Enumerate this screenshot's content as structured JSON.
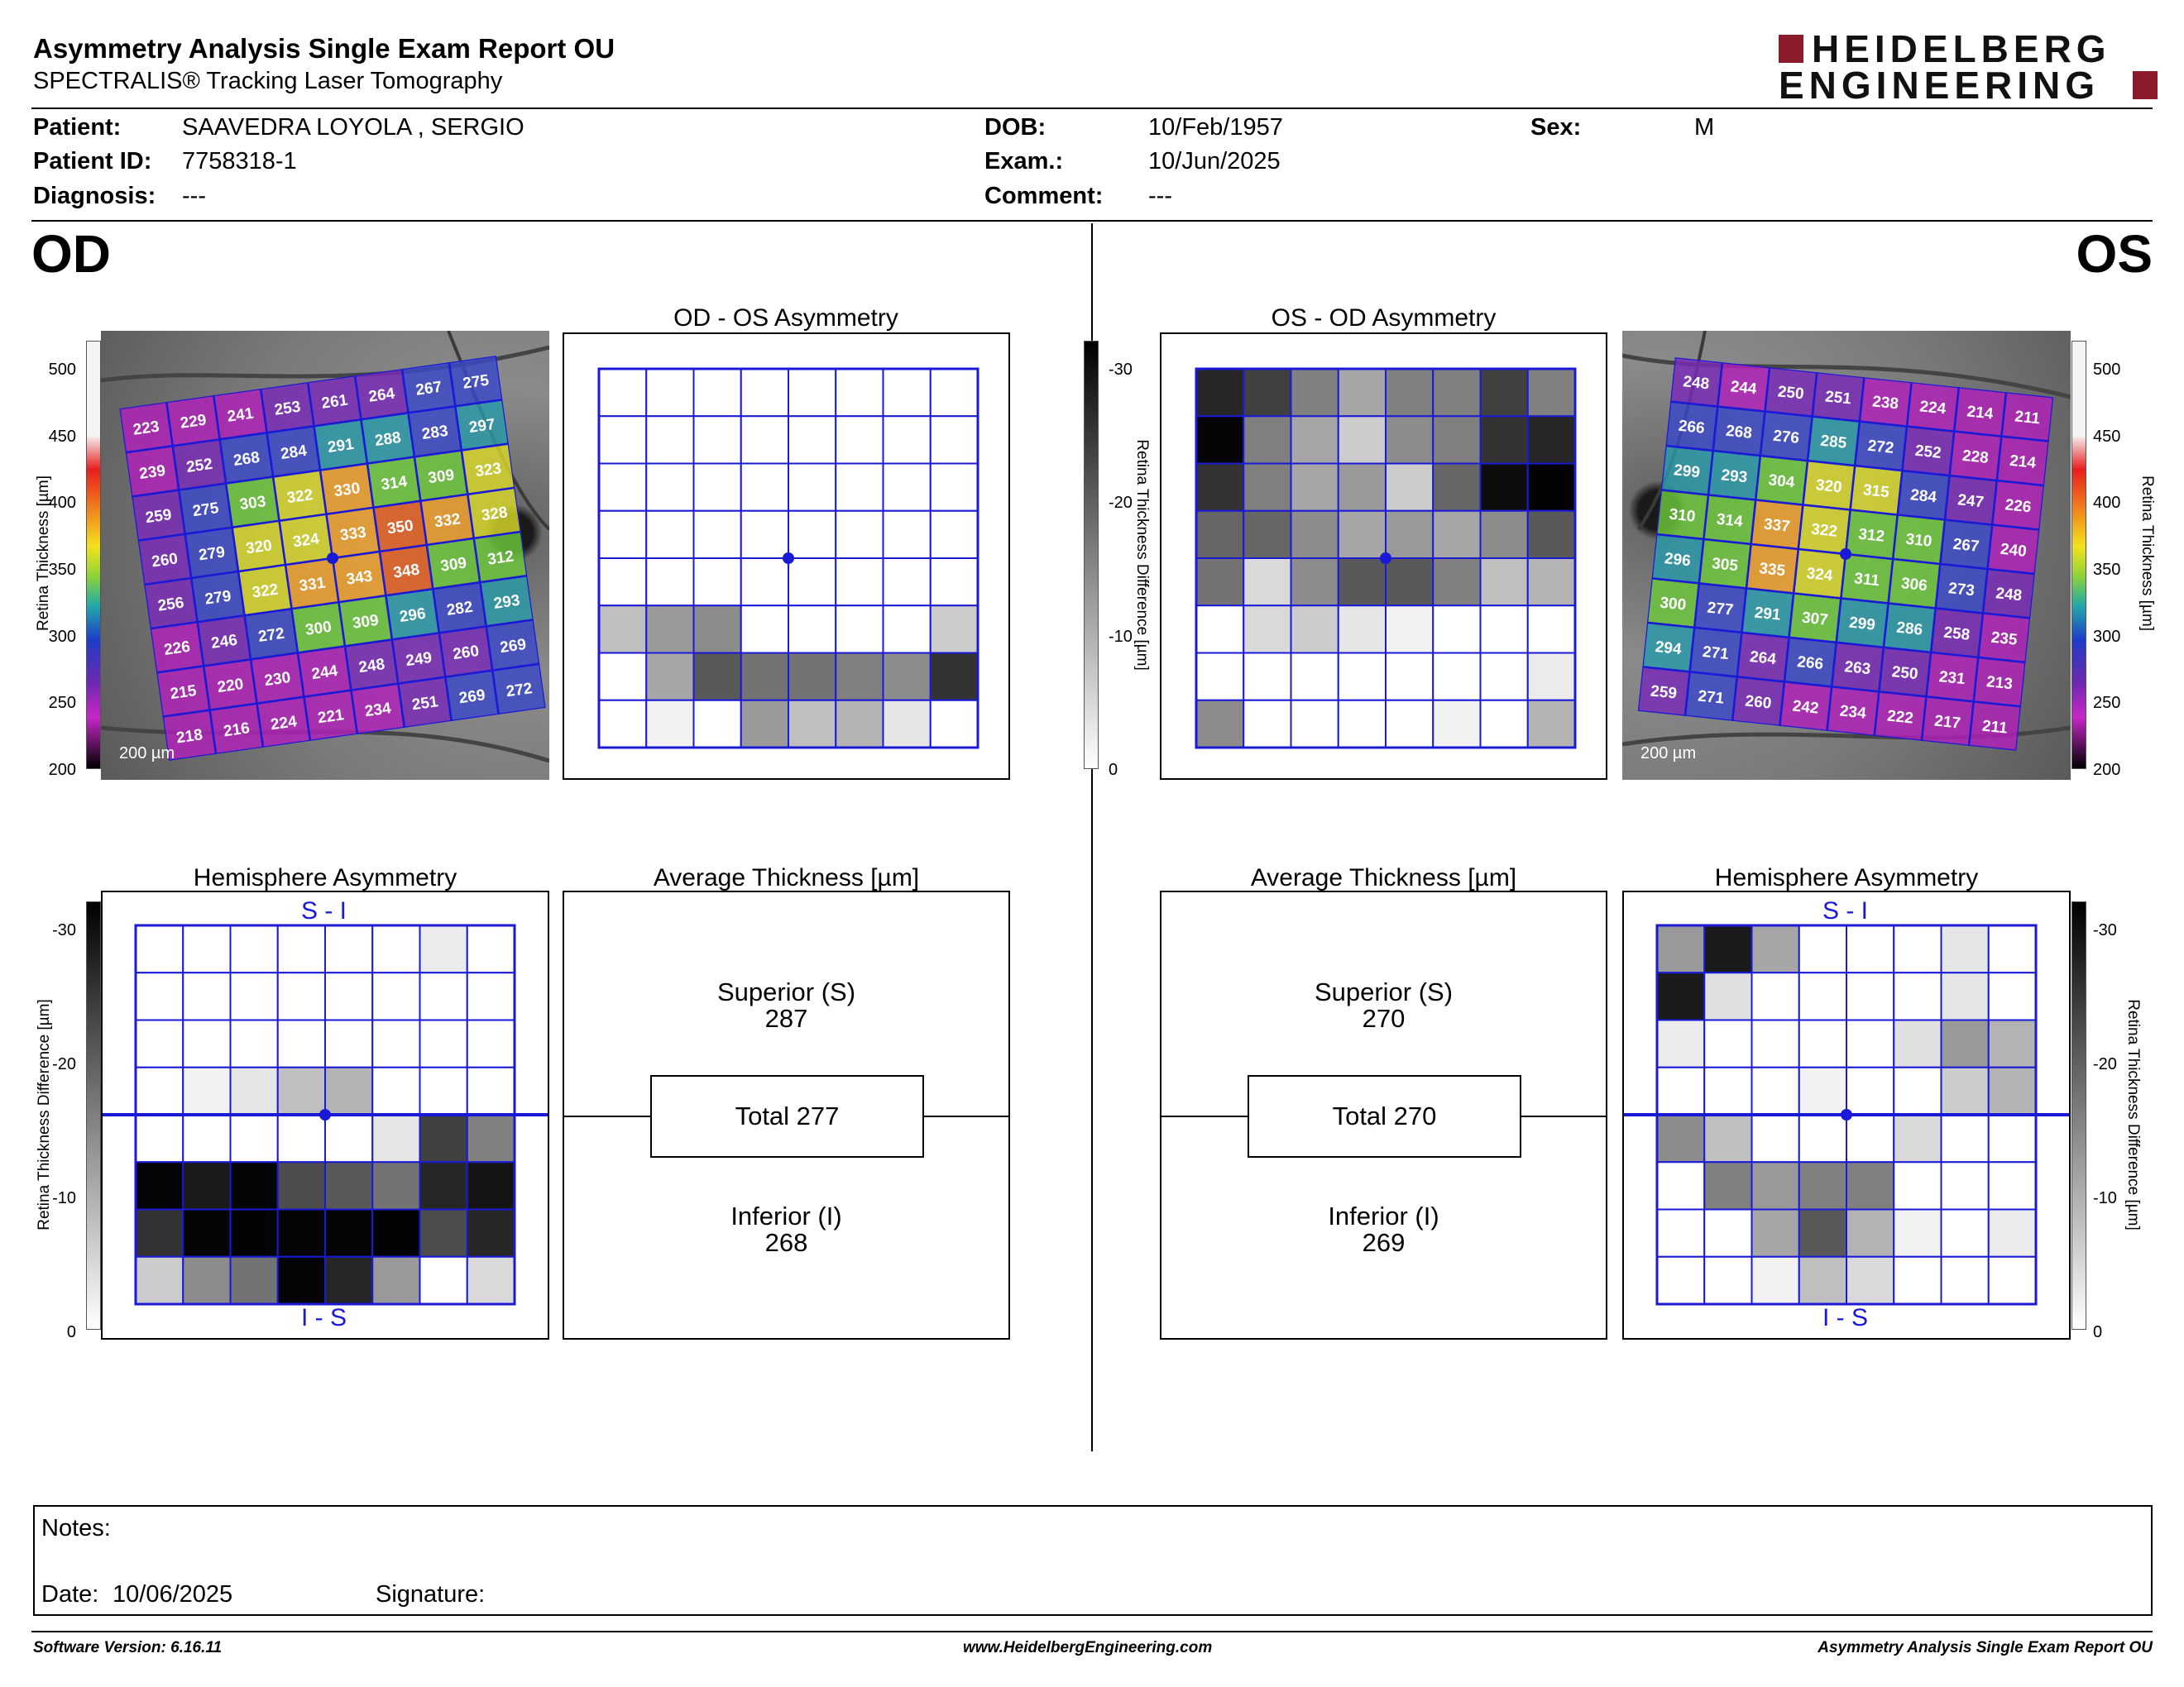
{
  "header": {
    "title": "Asymmetry Analysis Single Exam Report OU",
    "subtitle": "SPECTRALIS® Tracking Laser Tomography",
    "logo_line1": "HEIDELBERG",
    "logo_line2": "ENGINEERING",
    "brand_color": "#8b1a2a"
  },
  "patient": {
    "patient_label": "Patient:",
    "patient_value": "SAAVEDRA LOYOLA , SERGIO",
    "id_label": "Patient ID:",
    "id_value": "7758318-1",
    "diagnosis_label": "Diagnosis:",
    "diagnosis_value": "---",
    "dob_label": "DOB:",
    "dob_value": "10/Feb/1957",
    "exam_label": "Exam.:",
    "exam_value": "10/Jun/2025",
    "comment_label": "Comment:",
    "comment_value": "---",
    "sex_label": "Sex:",
    "sex_value": "M"
  },
  "od": {
    "eye_label": "OD",
    "asym_title": "OD - OS Asymmetry",
    "hemi_title": "Hemisphere Asymmetry",
    "avg_title": "Average Thickness [µm]",
    "hemi_top": "S - I",
    "hemi_bottom": "I - S",
    "superior_label": "Superior (S)",
    "superior_value": "287",
    "total_label": "Total 277",
    "inferior_label": "Inferior (I)",
    "inferior_value": "268",
    "scale_label": "200 µm",
    "thickness_grid": [
      [
        223,
        229,
        241,
        253,
        261,
        264,
        267,
        275
      ],
      [
        239,
        252,
        268,
        284,
        291,
        288,
        283,
        297
      ],
      [
        259,
        275,
        303,
        322,
        330,
        314,
        309,
        323
      ],
      [
        260,
        279,
        320,
        324,
        333,
        350,
        332,
        328
      ],
      [
        256,
        279,
        322,
        331,
        343,
        348,
        309,
        312
      ],
      [
        226,
        246,
        272,
        300,
        309,
        296,
        282,
        293
      ],
      [
        215,
        220,
        230,
        244,
        248,
        249,
        260,
        269
      ],
      [
        218,
        216,
        224,
        221,
        234,
        251,
        269,
        272
      ]
    ],
    "asym_grid": [
      [
        0,
        0,
        0,
        0,
        0,
        0,
        0,
        0
      ],
      [
        0,
        0,
        0,
        0,
        0,
        0,
        0,
        0
      ],
      [
        0,
        0,
        0,
        0,
        0,
        0,
        0,
        0
      ],
      [
        0,
        0,
        0,
        0,
        0,
        0,
        0,
        0
      ],
      [
        0,
        0,
        0,
        0,
        0,
        0,
        0,
        0
      ],
      [
        0.25,
        0.4,
        0.45,
        0,
        0,
        0,
        0,
        0.2
      ],
      [
        0,
        0.35,
        0.65,
        0.55,
        0.55,
        0.5,
        0.45,
        0.8
      ],
      [
        0,
        0.05,
        0,
        0.4,
        0.25,
        0.3,
        0.1,
        0
      ]
    ],
    "hemi_grid": [
      [
        0,
        0,
        0,
        0,
        0,
        0,
        0.08,
        0
      ],
      [
        0,
        0,
        0,
        0,
        0,
        0,
        0,
        0
      ],
      [
        0,
        0,
        0,
        0,
        0,
        0,
        0,
        0
      ],
      [
        0,
        0.05,
        0.1,
        0.25,
        0.3,
        0,
        0,
        0
      ],
      [
        0,
        0,
        0,
        0,
        0,
        0.1,
        0.75,
        0.5
      ],
      [
        0.98,
        0.9,
        0.98,
        0.7,
        0.65,
        0.55,
        0.85,
        0.92
      ],
      [
        0.8,
        0.98,
        0.99,
        0.98,
        0.98,
        0.99,
        0.7,
        0.85
      ],
      [
        0.2,
        0.45,
        0.55,
        0.98,
        0.85,
        0.4,
        0,
        0.15
      ]
    ]
  },
  "os": {
    "eye_label": "OS",
    "asym_title": "OS - OD Asymmetry",
    "hemi_title": "Hemisphere Asymmetry",
    "avg_title": "Average Thickness [µm]",
    "hemi_top": "S - I",
    "hemi_bottom": "I - S",
    "superior_label": "Superior (S)",
    "superior_value": "270",
    "total_label": "Total 270",
    "inferior_label": "Inferior (I)",
    "inferior_value": "269",
    "scale_label": "200 µm",
    "thickness_grid": [
      [
        248,
        244,
        250,
        251,
        238,
        224,
        214,
        211
      ],
      [
        266,
        268,
        276,
        285,
        272,
        252,
        228,
        214
      ],
      [
        299,
        293,
        304,
        320,
        315,
        284,
        247,
        226
      ],
      [
        310,
        314,
        337,
        322,
        312,
        310,
        267,
        240
      ],
      [
        296,
        305,
        335,
        324,
        311,
        306,
        273,
        248
      ],
      [
        300,
        277,
        291,
        307,
        299,
        286,
        258,
        235
      ],
      [
        294,
        271,
        264,
        266,
        263,
        250,
        231,
        213
      ],
      [
        259,
        271,
        260,
        242,
        234,
        222,
        217,
        211
      ]
    ],
    "asym_grid": [
      [
        0.85,
        0.75,
        0.5,
        0.35,
        0.5,
        0.5,
        0.75,
        0.5
      ],
      [
        0.98,
        0.5,
        0.35,
        0.2,
        0.45,
        0.5,
        0.8,
        0.85
      ],
      [
        0.8,
        0.5,
        0.35,
        0.4,
        0.2,
        0.6,
        0.95,
        0.99
      ],
      [
        0.6,
        0.6,
        0.45,
        0.35,
        0.4,
        0.35,
        0.45,
        0.65
      ],
      [
        0.55,
        0.15,
        0.45,
        0.65,
        0.65,
        0.5,
        0.25,
        0.3
      ],
      [
        0,
        0.15,
        0.2,
        0.1,
        0.05,
        0,
        0,
        0
      ],
      [
        0,
        0,
        0,
        0,
        0,
        0,
        0,
        0.08
      ],
      [
        0.45,
        0,
        0,
        0,
        0,
        0.05,
        0,
        0.3
      ]
    ],
    "hemi_grid": [
      [
        0.4,
        0.9,
        0.35,
        0,
        0,
        0,
        0.1,
        0
      ],
      [
        0.9,
        0.12,
        0,
        0,
        0,
        0,
        0.1,
        0
      ],
      [
        0.08,
        0,
        0,
        0,
        0,
        0.12,
        0.4,
        0.3
      ],
      [
        0,
        0,
        0,
        0.05,
        0,
        0,
        0.2,
        0.3
      ],
      [
        0.45,
        0.25,
        0,
        0,
        0,
        0.15,
        0,
        0
      ],
      [
        0,
        0.5,
        0.4,
        0.5,
        0.5,
        0,
        0,
        0
      ],
      [
        0,
        0,
        0.35,
        0.65,
        0.3,
        0.05,
        0,
        0.08
      ],
      [
        0,
        0,
        0.05,
        0.25,
        0.15,
        0,
        0,
        0
      ]
    ]
  },
  "thickness_scale": {
    "label": "Retina  Thickness [µm]",
    "ticks": [
      "500",
      "450",
      "400",
      "350",
      "300",
      "250",
      "200"
    ]
  },
  "diff_scale": {
    "label": "Retina Thickness Difference [µm]",
    "ticks": [
      "-30",
      "-20",
      "-10",
      "0"
    ]
  },
  "notes": {
    "notes_label": "Notes:",
    "date_label": "Date:",
    "date_value": "10/06/2025",
    "signature_label": "Signature:"
  },
  "footer": {
    "software": "Software Version: 6.16.11",
    "website": "www.HeidelbergEngineering.com",
    "report": "Asymmetry Analysis Single Exam Report OU"
  }
}
